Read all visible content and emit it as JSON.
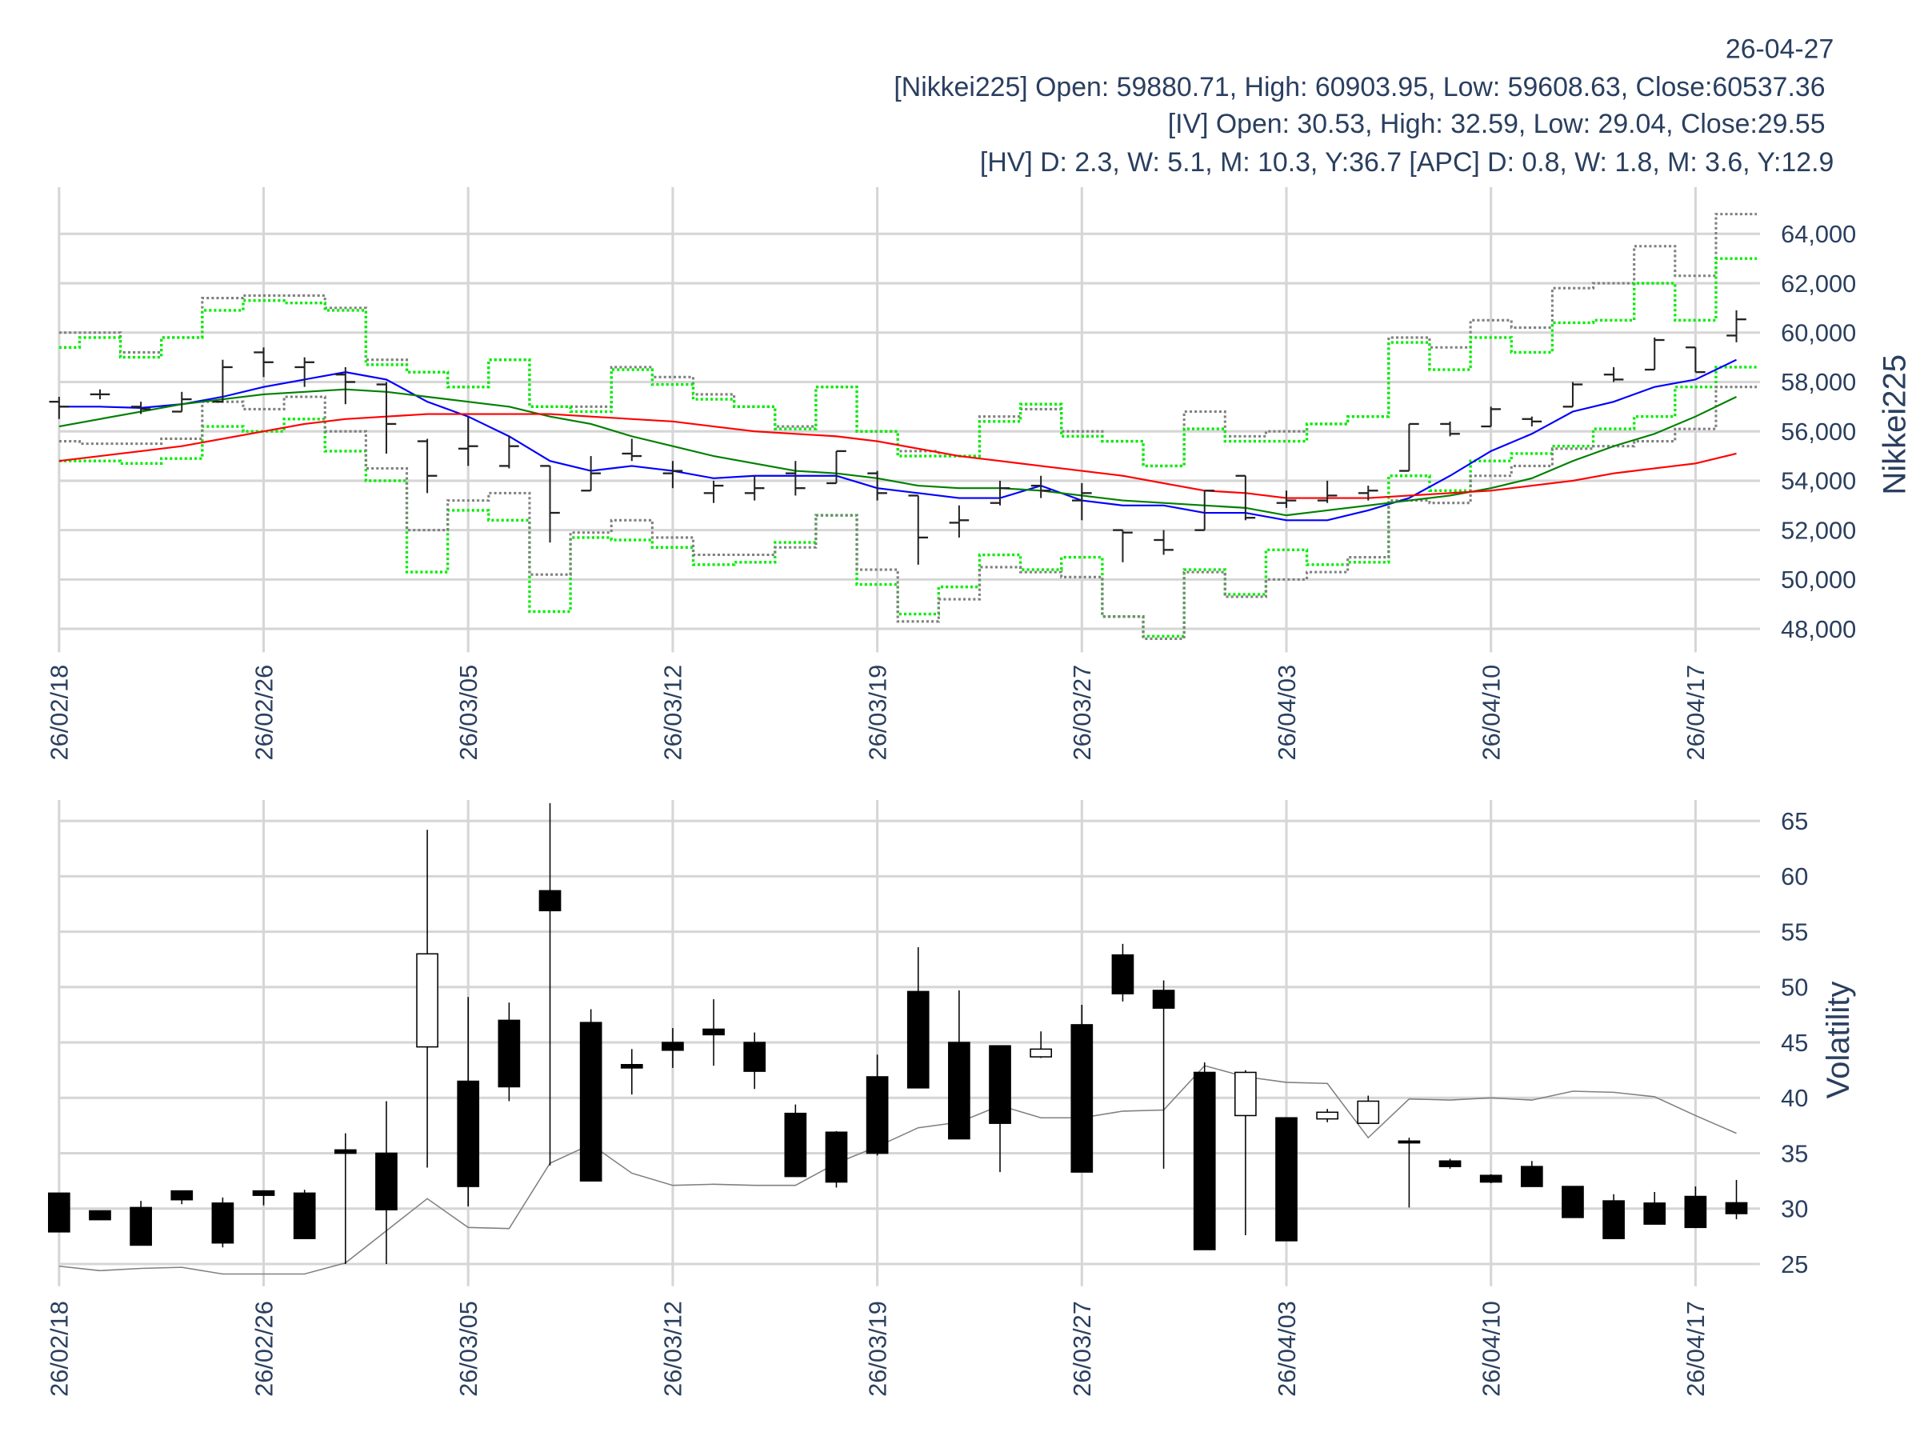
{
  "header": {
    "date": "26-04-27",
    "nikkei_line": "[Nikkei225] Open: 59880.71, High: 60903.95, Low: 59608.63, Close:60537.36",
    "iv_line": "[IV] Open: 30.53, High: 32.59, Low: 29.04, Close:29.55",
    "hv_line": "[HV] D: 2.3, W: 5.1, M: 10.3, Y:36.7 [APC] D: 0.8, W: 1.8, M: 3.6, Y:12.9"
  },
  "colors": {
    "text": "#2a3f5f",
    "ma_short": "#0000ff",
    "ma_mid": "#008000",
    "ma_long": "#ff0000",
    "band_gray": "#808080",
    "band_green": "#00ee00",
    "hv": "#808080"
  },
  "chart_data": [
    {
      "type": "ohlc",
      "ylabel": "Nikkei225",
      "ylim": [
        47000,
        65500
      ],
      "yticks": [
        48000,
        50000,
        52000,
        54000,
        56000,
        58000,
        60000,
        62000,
        64000
      ],
      "ytick_labels": [
        "48,000",
        "50,000",
        "52,000",
        "54,000",
        "56,000",
        "58,000",
        "60,000",
        "62,000",
        "64,000"
      ],
      "xtick_labels": [
        "26/02/18",
        "26/02/26",
        "26/03/05",
        "26/03/12",
        "26/03/19",
        "26/03/27",
        "26/04/03",
        "26/04/10",
        "26/04/17"
      ],
      "xtick_every": 5,
      "grid": true,
      "dates": [
        "26/02/18",
        "26/02/19",
        "26/02/20",
        "26/02/24",
        "26/02/25",
        "26/02/26",
        "26/02/27",
        "26/03/02",
        "26/03/03",
        "26/03/04",
        "26/03/05",
        "26/03/06",
        "26/03/09",
        "26/03/10",
        "26/03/11",
        "26/03/12",
        "26/03/13",
        "26/03/16",
        "26/03/17",
        "26/03/18",
        "26/03/19",
        "26/03/23",
        "26/03/24",
        "26/03/25",
        "26/03/26",
        "26/03/27",
        "26/03/30",
        "26/03/31",
        "26/04/01",
        "26/04/02",
        "26/04/03",
        "26/04/06",
        "26/04/07",
        "26/04/08",
        "26/04/09",
        "26/04/10",
        "26/04/13",
        "26/04/14",
        "26/04/15",
        "26/04/16",
        "26/04/17",
        "26/04/20"
      ],
      "open": [
        57200,
        57500,
        57000,
        56800,
        57200,
        59200,
        58600,
        58300,
        57900,
        55600,
        55300,
        54600,
        54600,
        53600,
        55100,
        54300,
        53500,
        53500,
        54300,
        53900,
        54300,
        53400,
        52300,
        53100,
        53800,
        53200,
        52000,
        51600,
        52000,
        54200,
        53100,
        53200,
        53500,
        54400,
        56300,
        56200,
        56500,
        57000,
        58300,
        58500,
        59400,
        59880.71
      ],
      "high": [
        57400,
        57700,
        57200,
        57600,
        58900,
        59400,
        59000,
        58600,
        58000,
        55700,
        56600,
        55800,
        54600,
        55000,
        55700,
        54800,
        54000,
        54200,
        54800,
        55200,
        54400,
        53400,
        53000,
        54000,
        54200,
        53900,
        52000,
        52000,
        53600,
        54200,
        53600,
        54000,
        53800,
        56300,
        56400,
        57000,
        56600,
        58000,
        58600,
        59800,
        59400,
        60903.95
      ],
      "low": [
        56500,
        57300,
        56700,
        56800,
        57200,
        58200,
        57800,
        57100,
        55100,
        53500,
        54600,
        54500,
        51500,
        53600,
        54800,
        53700,
        53100,
        53200,
        53400,
        53900,
        53200,
        50600,
        51700,
        53000,
        53300,
        52400,
        50700,
        51000,
        52000,
        52400,
        52900,
        53100,
        53200,
        54400,
        55800,
        56200,
        56200,
        57000,
        58000,
        58500,
        58400,
        59608.63
      ],
      "close": [
        57000,
        57500,
        56900,
        57300,
        58600,
        58800,
        58800,
        58000,
        56300,
        54200,
        55400,
        55400,
        52700,
        54300,
        55000,
        54400,
        53800,
        53700,
        53700,
        55200,
        53500,
        51700,
        52400,
        53700,
        53600,
        53500,
        51900,
        51200,
        53600,
        52500,
        53200,
        53400,
        53600,
        56300,
        55900,
        56900,
        56400,
        57900,
        58100,
        59700,
        58400,
        60537.36
      ],
      "lines": [
        {
          "name": "ma_short",
          "values": [
            57000,
            57000,
            56950,
            57100,
            57400,
            57800,
            58100,
            58400,
            58100,
            57200,
            56600,
            55800,
            54800,
            54400,
            54600,
            54400,
            54100,
            54200,
            54200,
            54200,
            53700,
            53500,
            53300,
            53300,
            53800,
            53200,
            53000,
            53000,
            52700,
            52700,
            52400,
            52400,
            52800,
            53300,
            54200,
            55200,
            55900,
            56800,
            57200,
            57800,
            58100,
            58900
          ]
        },
        {
          "name": "ma_mid",
          "values": [
            56200,
            56500,
            56800,
            57100,
            57300,
            57500,
            57600,
            57700,
            57600,
            57400,
            57200,
            57000,
            56600,
            56300,
            55800,
            55400,
            55000,
            54700,
            54400,
            54300,
            54100,
            53800,
            53700,
            53700,
            53600,
            53400,
            53200,
            53100,
            53000,
            52900,
            52600,
            52800,
            53000,
            53200,
            53400,
            53700,
            54100,
            54800,
            55400,
            55900,
            56600,
            57400
          ]
        },
        {
          "name": "ma_long",
          "values": [
            54800,
            55000,
            55200,
            55400,
            55700,
            56000,
            56300,
            56500,
            56600,
            56700,
            56700,
            56700,
            56700,
            56600,
            56500,
            56400,
            56200,
            56000,
            55900,
            55800,
            55600,
            55300,
            55000,
            54800,
            54600,
            54400,
            54200,
            53900,
            53600,
            53500,
            53300,
            53300,
            53300,
            53400,
            53500,
            53600,
            53800,
            54000,
            54300,
            54500,
            54700,
            55100
          ]
        }
      ],
      "bands": [
        {
          "name": "upper_gray",
          "values": [
            60000,
            60000,
            59200,
            59800,
            61400,
            61500,
            61500,
            61000,
            58900,
            58400,
            57800,
            58900,
            57000,
            57000,
            58600,
            58200,
            57500,
            57000,
            56200,
            57800,
            56000,
            55200,
            55000,
            56600,
            56900,
            56000,
            55600,
            54600,
            56800,
            55800,
            56000,
            56300,
            56600,
            59800,
            59400,
            60500,
            60200,
            61800,
            62000,
            63500,
            62300,
            64800
          ]
        },
        {
          "name": "upper_green",
          "values": [
            59400,
            59800,
            59000,
            59800,
            60900,
            61300,
            61200,
            60900,
            58700,
            58400,
            57800,
            58900,
            57000,
            56800,
            58500,
            57900,
            57300,
            57000,
            56100,
            57800,
            56000,
            55000,
            55000,
            56400,
            57100,
            55800,
            55600,
            54600,
            56100,
            55600,
            55600,
            56300,
            56600,
            59600,
            58500,
            59800,
            59200,
            60400,
            60500,
            62000,
            60500,
            63000
          ]
        },
        {
          "name": "lower_green",
          "values": [
            54800,
            54800,
            54700,
            54900,
            56200,
            56000,
            56500,
            55200,
            54000,
            50300,
            52800,
            52400,
            48700,
            51700,
            51600,
            51300,
            50600,
            50700,
            51500,
            52600,
            49800,
            48600,
            49700,
            51000,
            50400,
            50900,
            48500,
            47700,
            50400,
            49400,
            51200,
            50600,
            50700,
            54200,
            53600,
            54800,
            55100,
            55400,
            56100,
            56600,
            57800,
            58600
          ]
        },
        {
          "name": "lower_gray",
          "values": [
            55600,
            55500,
            55500,
            55700,
            57200,
            56900,
            57400,
            56000,
            54500,
            52000,
            53200,
            53500,
            50200,
            51900,
            52400,
            51700,
            51000,
            51000,
            51300,
            52600,
            50400,
            48300,
            49200,
            50500,
            50300,
            50100,
            48500,
            47600,
            50300,
            49300,
            50000,
            50300,
            50900,
            53200,
            53100,
            54200,
            54600,
            55300,
            55400,
            55600,
            56100,
            57800
          ]
        }
      ]
    },
    {
      "type": "candlestick",
      "ylabel": "Volatility",
      "ylim": [
        23,
        67
      ],
      "yticks": [
        25,
        30,
        35,
        40,
        45,
        50,
        55,
        60,
        65
      ],
      "ytick_labels": [
        "25",
        "30",
        "35",
        "40",
        "45",
        "50",
        "55",
        "60",
        "65"
      ],
      "xtick_labels": [
        "26/02/18",
        "26/02/26",
        "26/03/05",
        "26/03/12",
        "26/03/19",
        "26/03/27",
        "26/04/03",
        "26/04/10",
        "26/04/17"
      ],
      "grid": true,
      "open": [
        31.4,
        29.8,
        30.1,
        31.6,
        30.5,
        31.6,
        31.4,
        35.3,
        35.0,
        44.6,
        41.5,
        47.0,
        58.7,
        46.8,
        43.0,
        45.0,
        46.2,
        45.0,
        38.6,
        36.9,
        41.9,
        49.6,
        45.0,
        44.7,
        43.7,
        46.6,
        52.9,
        49.7,
        42.3,
        38.4,
        38.2,
        38.1,
        37.7,
        36.1,
        34.3,
        33.0,
        33.8,
        32.0,
        30.7,
        30.5,
        31.1,
        30.53
      ],
      "high": [
        31.4,
        29.8,
        30.7,
        31.6,
        31.0,
        31.6,
        31.7,
        36.8,
        39.7,
        64.2,
        49.1,
        48.6,
        66.6,
        48.0,
        44.4,
        46.3,
        48.9,
        45.9,
        39.4,
        37.0,
        43.9,
        53.6,
        49.7,
        44.7,
        46.0,
        48.4,
        53.9,
        50.6,
        43.2,
        42.5,
        38.2,
        39.0,
        40.2,
        36.4,
        34.5,
        33.1,
        34.3,
        32.0,
        31.3,
        31.5,
        32.0,
        32.59
      ],
      "low": [
        27.9,
        29.0,
        26.7,
        30.4,
        26.5,
        30.3,
        27.3,
        25.0,
        25.0,
        33.7,
        30.2,
        39.7,
        33.9,
        32.5,
        40.3,
        42.7,
        42.9,
        40.8,
        32.9,
        31.9,
        34.8,
        40.9,
        36.3,
        33.3,
        43.6,
        33.3,
        48.7,
        33.6,
        26.3,
        27.6,
        27.1,
        37.8,
        37.7,
        30.1,
        33.6,
        32.3,
        32.0,
        29.2,
        27.3,
        28.6,
        28.3,
        29.04
      ],
      "close": [
        27.9,
        29.0,
        26.7,
        30.8,
        26.9,
        31.2,
        27.3,
        35.0,
        29.9,
        53.0,
        32.0,
        41.0,
        56.9,
        32.5,
        42.7,
        44.3,
        45.7,
        42.4,
        32.9,
        32.4,
        35.0,
        40.9,
        36.3,
        37.7,
        44.4,
        33.3,
        49.4,
        48.1,
        26.3,
        42.3,
        27.1,
        38.7,
        39.7,
        36.0,
        33.8,
        32.4,
        32.0,
        29.2,
        27.3,
        28.6,
        28.3,
        29.55
      ],
      "hv": [
        24.8,
        24.4,
        24.6,
        24.7,
        24.1,
        24.1,
        24.1,
        25.1,
        28.0,
        30.9,
        28.3,
        28.2,
        34.1,
        35.8,
        33.2,
        32.1,
        32.2,
        32.1,
        32.1,
        34.1,
        35.6,
        37.3,
        37.8,
        39.3,
        38.2,
        38.2,
        38.8,
        38.9,
        42.9,
        41.9,
        41.4,
        41.3,
        36.4,
        39.9,
        39.8,
        40.0,
        39.8,
        40.6,
        40.5,
        40.1,
        38.4,
        36.8
      ]
    }
  ]
}
